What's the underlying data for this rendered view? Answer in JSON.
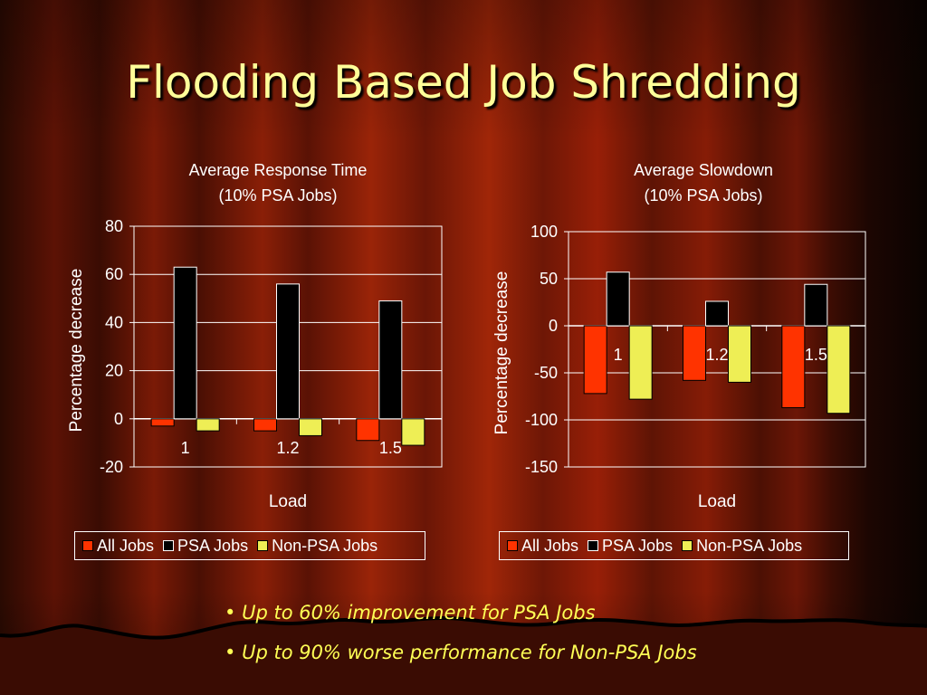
{
  "slide": {
    "title": "Flooding Based Job Shredding",
    "bullets": [
      "Up to 60% improvement for PSA Jobs",
      "Up to 90% worse performance for Non-PSA Jobs"
    ],
    "bullet_symbol": "•"
  },
  "colors": {
    "all_jobs": "#ff3300",
    "psa_jobs": "#000000",
    "non_psa_jobs": "#eeee55",
    "title": "#ffff99",
    "bullet_text": "#ffff55"
  },
  "chart_data": [
    {
      "type": "bar",
      "title_line1": "Average Response Time",
      "title_line2": "(10% PSA Jobs)",
      "xlabel": "Load",
      "ylabel": "Percentage decrease",
      "categories": [
        "1",
        "1.2",
        "1.5"
      ],
      "ylim": [
        -20,
        80
      ],
      "yticks": [
        -20,
        0,
        20,
        40,
        60,
        80
      ],
      "grid": true,
      "legend": "bottom",
      "series": [
        {
          "name": "All Jobs",
          "values": [
            -3,
            -5,
            -9
          ]
        },
        {
          "name": "PSA Jobs",
          "values": [
            63,
            56,
            49
          ]
        },
        {
          "name": "Non-PSA Jobs",
          "values": [
            -5,
            -7,
            -11
          ]
        }
      ]
    },
    {
      "type": "bar",
      "title_line1": "Average Slowdown",
      "title_line2": "(10% PSA Jobs)",
      "xlabel": "Load",
      "ylabel": "Percentage decrease",
      "categories": [
        "1",
        "1.2",
        "1.5"
      ],
      "ylim": [
        -150,
        100
      ],
      "yticks": [
        -150,
        -100,
        -50,
        0,
        50,
        100
      ],
      "grid": true,
      "legend": "bottom",
      "series": [
        {
          "name": "All Jobs",
          "values": [
            -72,
            -58,
            -87
          ]
        },
        {
          "name": "PSA Jobs",
          "values": [
            57,
            26,
            44
          ]
        },
        {
          "name": "Non-PSA Jobs",
          "values": [
            -78,
            -60,
            -93
          ]
        }
      ]
    }
  ]
}
